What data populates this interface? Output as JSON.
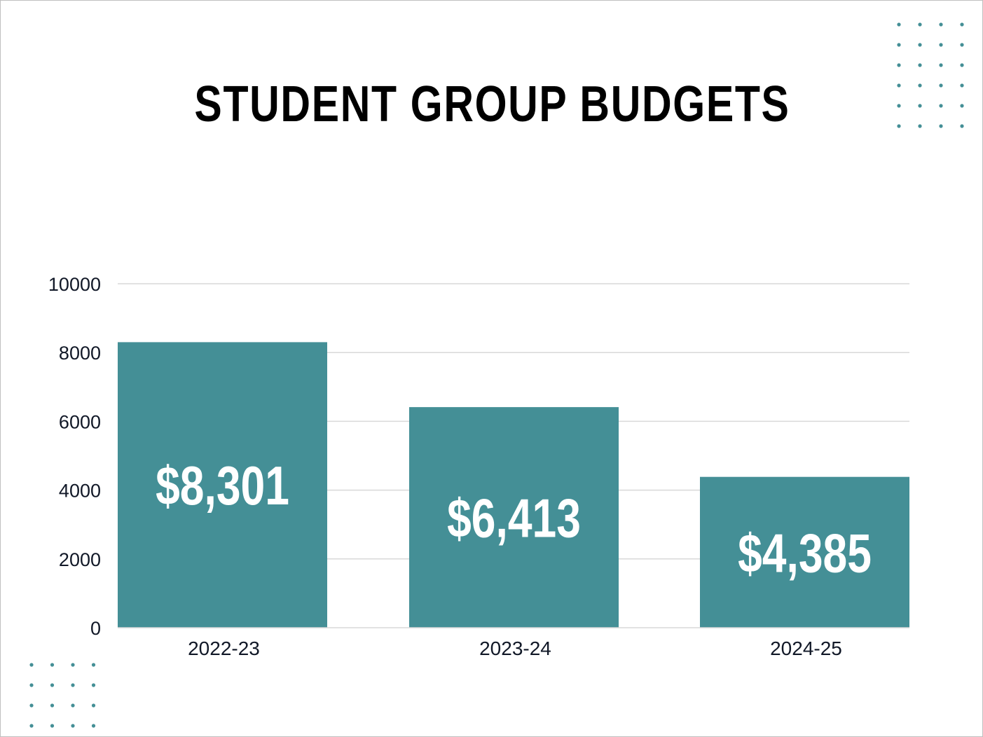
{
  "title": "STUDENT GROUP BUDGETS",
  "colors": {
    "bar": "#448f96",
    "dots": "#448f96",
    "grid": "#d9d9d9",
    "title": "#000000",
    "axis_text": "#111827"
  },
  "chart_data": {
    "type": "bar",
    "title": "STUDENT GROUP BUDGETS",
    "xlabel": "",
    "ylabel": "",
    "categories": [
      "2022-23",
      "2023-24",
      "2024-25"
    ],
    "values": [
      8301,
      6413,
      4385
    ],
    "data_labels": [
      "$8,301",
      "$6,413",
      "$4,385"
    ],
    "ylim": [
      0,
      10000
    ],
    "yticks": [
      "0",
      "2000",
      "4000",
      "6000",
      "8000",
      "10000"
    ],
    "ytick_values": [
      0,
      2000,
      4000,
      6000,
      8000,
      10000
    ],
    "grid": true,
    "legend": "none"
  }
}
